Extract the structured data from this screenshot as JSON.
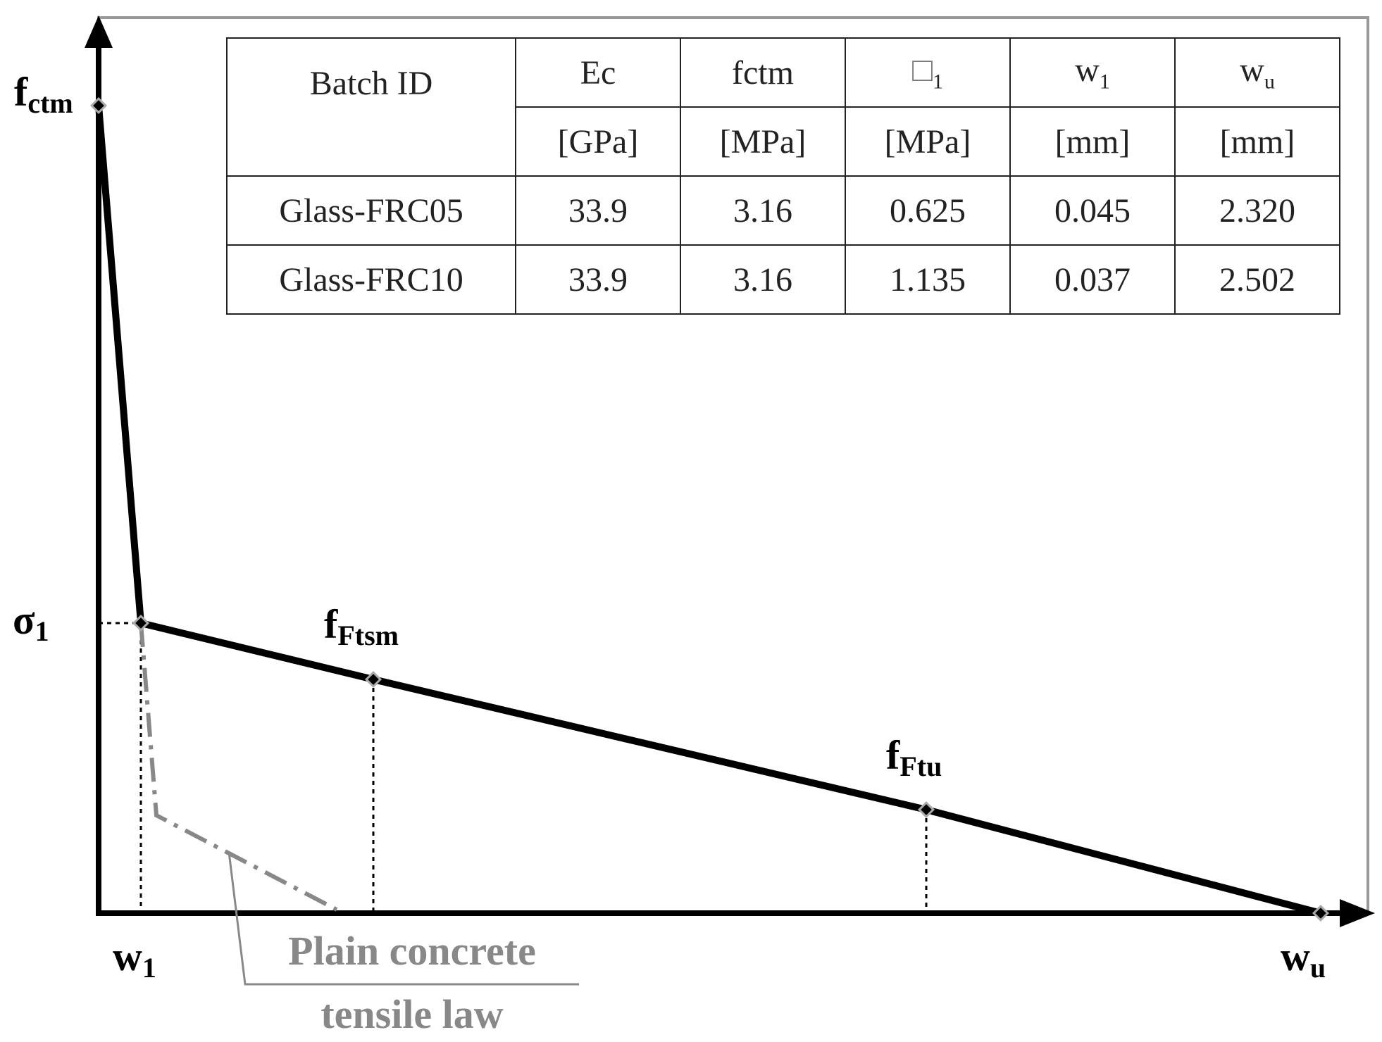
{
  "diagram": {
    "y_axis_top_label": "f",
    "y_axis_top_label_sub": "ctm",
    "sigma_label": "σ",
    "sigma_label_sub": "1",
    "w1_label": "w",
    "w1_label_sub": "1",
    "wu_label": "w",
    "wu_label_sub": "u",
    "ffts_label": "f",
    "ffts_label_sub": "Ftsm",
    "fftu_label": "f",
    "fftu_label_sub": "Ftu",
    "plain_line1": "Plain concrete",
    "plain_line2": "tensile law",
    "colors": {
      "main": "#000000",
      "plain": "#888888",
      "frame": "#999999",
      "marker_stroke": "#aaaaaa"
    }
  },
  "table": {
    "header_id": "Batch ID",
    "h_ec": "Ec",
    "h_fctm": "fctm",
    "h_sigma_glyph": "□",
    "h_sigma_sub": "1",
    "h_w1": "w",
    "h_w1_sub": "1",
    "h_wu": "w",
    "h_wu_sub": "u",
    "u_ec": "[GPa]",
    "u_fctm": "[MPa]",
    "u_sigma": "[MPa]",
    "u_w1": "[mm]",
    "u_wu": "[mm]",
    "rows": [
      {
        "id": "Glass-FRC05",
        "ec": "33.9",
        "fctm": "3.16",
        "sigma1": "0.625",
        "w1": "0.045",
        "wu": "2.320"
      },
      {
        "id": "Glass-FRC10",
        "ec": "33.9",
        "fctm": "3.16",
        "sigma1": "1.135",
        "w1": "0.037",
        "wu": "2.502"
      }
    ]
  }
}
